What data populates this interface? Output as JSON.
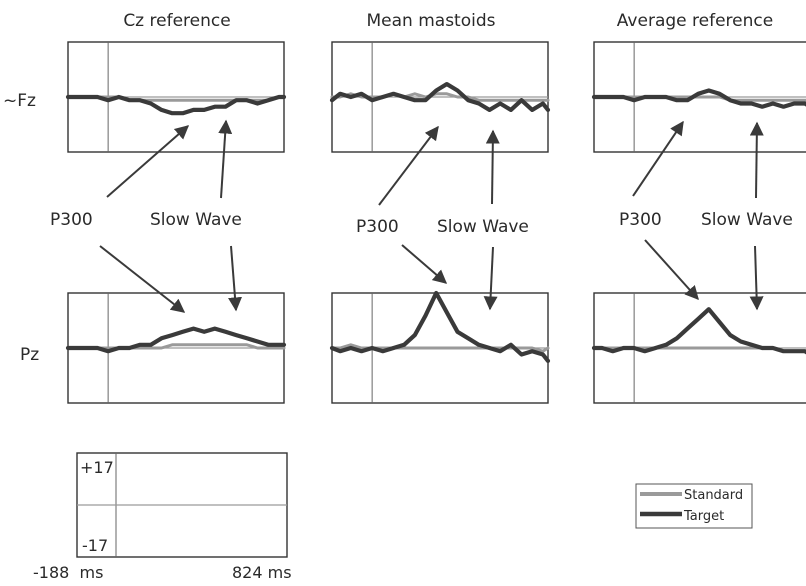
{
  "chart_data": {
    "type": "line",
    "columns": [
      "Cz reference",
      "Mean mastoids",
      "Average reference"
    ],
    "rows": [
      "~Fz",
      "Pz"
    ],
    "annotations": {
      "p300": "P300",
      "slow_wave": "Slow Wave"
    },
    "x": [
      -188,
      -150,
      -100,
      -50,
      0,
      50,
      100,
      150,
      200,
      250,
      300,
      350,
      400,
      450,
      500,
      550,
      600,
      650,
      700,
      750,
      800,
      824
    ],
    "series_names": [
      "Standard",
      "Target"
    ],
    "panels": [
      {
        "row": "~Fz",
        "column": "Cz reference",
        "standard": [
          0,
          0,
          0,
          0,
          0,
          0,
          -1,
          -1,
          -1,
          -1,
          -1,
          -1,
          -1,
          -1,
          -1,
          -1,
          -1,
          -1,
          -1,
          -1,
          0,
          0
        ],
        "target": [
          0,
          0,
          0,
          0,
          -1,
          0,
          -1,
          -1,
          -2,
          -4,
          -5,
          -5,
          -4,
          -4,
          -3,
          -3,
          -1,
          -1,
          -2,
          -1,
          0,
          0
        ]
      },
      {
        "row": "~Fz",
        "column": "Mean mastoids",
        "standard": [
          0,
          0,
          1,
          0,
          0,
          0,
          1,
          0,
          1,
          0,
          1,
          1,
          0,
          0,
          -1,
          -1,
          -1,
          -1,
          -1,
          -1,
          -1,
          -1
        ],
        "target": [
          -1,
          1,
          0,
          1,
          -1,
          0,
          1,
          0,
          -1,
          -1,
          2,
          4,
          2,
          -1,
          -2,
          -4,
          -2,
          -4,
          -1,
          -4,
          -2,
          -4
        ]
      },
      {
        "row": "~Fz",
        "column": "Average reference",
        "standard": [
          0,
          0,
          0,
          0,
          0,
          0,
          0,
          0,
          0,
          0,
          0,
          0,
          0,
          -1,
          -1,
          -1,
          -1,
          -1,
          -1,
          -1,
          -1,
          -1
        ],
        "target": [
          0,
          0,
          0,
          0,
          -1,
          0,
          0,
          0,
          -1,
          -1,
          1,
          2,
          1,
          -1,
          -2,
          -2,
          -3,
          -2,
          -3,
          -2,
          -2,
          -3
        ]
      },
      {
        "row": "Pz",
        "column": "Cz reference",
        "standard": [
          0,
          0,
          0,
          0,
          0,
          0,
          0,
          0,
          0,
          0,
          1,
          1,
          1,
          1,
          1,
          1,
          1,
          1,
          0,
          0,
          0,
          0
        ],
        "target": [
          0,
          0,
          0,
          0,
          -1,
          0,
          0,
          1,
          1,
          3,
          4,
          5,
          6,
          5,
          6,
          5,
          4,
          3,
          2,
          1,
          1,
          1
        ]
      },
      {
        "row": "Pz",
        "column": "Mean mastoids",
        "standard": [
          0,
          0,
          1,
          0,
          0,
          0,
          0,
          0,
          0,
          0,
          0,
          0,
          0,
          0,
          0,
          0,
          0,
          0,
          0,
          0,
          -1,
          0
        ],
        "target": [
          0,
          -1,
          0,
          -1,
          0,
          -1,
          0,
          1,
          4,
          10,
          17,
          11,
          5,
          3,
          1,
          0,
          -1,
          1,
          -2,
          -1,
          -2,
          -4
        ]
      },
      {
        "row": "Pz",
        "column": "Average reference",
        "standard": [
          0,
          0,
          0,
          0,
          0,
          0,
          0,
          0,
          0,
          0,
          0,
          0,
          0,
          0,
          0,
          0,
          0,
          0,
          -1,
          -1,
          -1,
          -1
        ],
        "target": [
          0,
          0,
          -1,
          0,
          0,
          -1,
          0,
          1,
          3,
          6,
          9,
          12,
          8,
          4,
          2,
          1,
          0,
          0,
          -1,
          -1,
          -1,
          -2
        ]
      }
    ],
    "scale": {
      "y_max_label": "+17",
      "y_min_label": "-17",
      "x_min_label": "-188  ms",
      "x_max_label": "824 ms"
    },
    "ylim": [
      -17,
      17
    ],
    "xlim": [
      -188,
      824
    ],
    "legend": {
      "position": "bottom-right",
      "entries": [
        "Standard",
        "Target"
      ]
    },
    "colors": {
      "standard": "#9a9a9a",
      "target": "#3a3a3a"
    },
    "grid": false
  }
}
